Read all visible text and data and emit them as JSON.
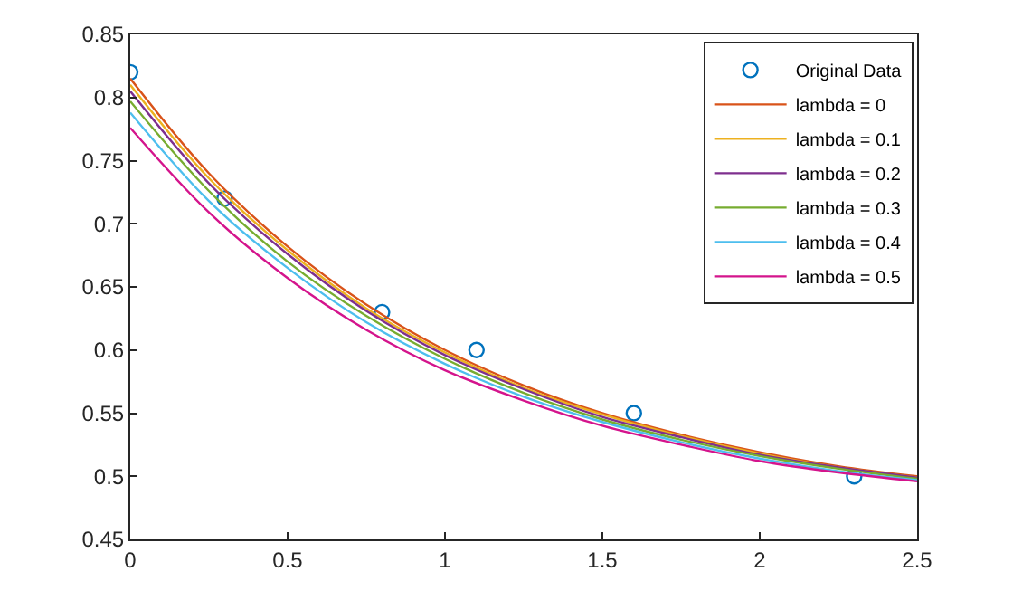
{
  "chart_data": {
    "type": "line",
    "x": [
      0,
      0.25,
      0.5,
      0.75,
      1,
      1.25,
      1.5,
      1.75,
      2,
      2.25,
      2.5
    ],
    "series": [
      {
        "name": "Original Data",
        "type": "scatter",
        "marker": "circle",
        "color": "#0072bd",
        "x": [
          0,
          0.3,
          0.8,
          1.1,
          1.6,
          2.3
        ],
        "values": [
          0.82,
          0.72,
          0.63,
          0.6,
          0.55,
          0.5
        ]
      },
      {
        "name": "lambda = 0",
        "color": "#d95319",
        "values": [
          0.815,
          0.74,
          0.682,
          0.636,
          0.6,
          0.572,
          0.55,
          0.533,
          0.519,
          0.508,
          0.5
        ]
      },
      {
        "name": "lambda = 0.1",
        "color": "#edb120",
        "values": [
          0.81,
          0.736,
          0.679,
          0.633,
          0.598,
          0.57,
          0.549,
          0.532,
          0.518,
          0.507,
          0.499
        ]
      },
      {
        "name": "lambda = 0.2",
        "color": "#7e2f8e",
        "values": [
          0.805,
          0.732,
          0.676,
          0.631,
          0.596,
          0.569,
          0.547,
          0.531,
          0.517,
          0.507,
          0.499
        ]
      },
      {
        "name": "lambda = 0.3",
        "color": "#77ac30",
        "values": [
          0.797,
          0.726,
          0.67,
          0.627,
          0.593,
          0.566,
          0.545,
          0.529,
          0.516,
          0.506,
          0.498
        ]
      },
      {
        "name": "lambda = 0.4",
        "color": "#4dbeee",
        "values": [
          0.788,
          0.718,
          0.665,
          0.622,
          0.589,
          0.563,
          0.543,
          0.527,
          0.514,
          0.504,
          0.497
        ]
      },
      {
        "name": "lambda = 0.5",
        "color": "#d4148c",
        "values": [
          0.776,
          0.709,
          0.657,
          0.616,
          0.584,
          0.56,
          0.54,
          0.525,
          0.512,
          0.503,
          0.496
        ]
      }
    ],
    "xlim": [
      0,
      2.5
    ],
    "xticks": [
      0,
      0.5,
      1,
      1.5,
      2,
      2.5
    ],
    "ylim": [
      0.45,
      0.85
    ],
    "yticks": [
      0.45,
      0.5,
      0.55,
      0.6,
      0.65,
      0.7,
      0.75,
      0.8,
      0.85
    ],
    "grid": false,
    "legend": "top right",
    "marker": "none",
    "line_style": "solid"
  }
}
